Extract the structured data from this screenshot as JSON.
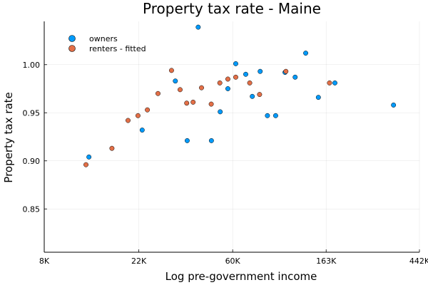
{
  "chart_data": {
    "type": "scatter",
    "title": "Property tax rate - Maine",
    "xlabel": "Log pre-government income",
    "ylabel": "Property tax rate",
    "x_scale": "log",
    "xlim": [
      8000,
      442000
    ],
    "ylim": [
      0.805,
      1.045
    ],
    "x_ticks": [
      {
        "value": 8000,
        "label": "8K"
      },
      {
        "value": 22000,
        "label": "22K"
      },
      {
        "value": 60000,
        "label": "60K"
      },
      {
        "value": 163000,
        "label": "163K"
      },
      {
        "value": 442000,
        "label": "442K"
      }
    ],
    "y_ticks": [
      {
        "value": 0.85,
        "label": "0.85"
      },
      {
        "value": 0.9,
        "label": "0.90"
      },
      {
        "value": 0.95,
        "label": "0.95"
      },
      {
        "value": 1.0,
        "label": "1.00"
      }
    ],
    "grid": true,
    "legend_position": "top-left",
    "series": [
      {
        "name": "owners",
        "color": "#009AFA",
        "points": [
          {
            "x": 12900,
            "y": 0.904
          },
          {
            "x": 22800,
            "y": 0.932
          },
          {
            "x": 32500,
            "y": 0.983
          },
          {
            "x": 36900,
            "y": 0.921
          },
          {
            "x": 41500,
            "y": 1.039
          },
          {
            "x": 47800,
            "y": 0.921
          },
          {
            "x": 52500,
            "y": 0.951
          },
          {
            "x": 57000,
            "y": 0.975
          },
          {
            "x": 62000,
            "y": 1.001
          },
          {
            "x": 69000,
            "y": 0.99
          },
          {
            "x": 74000,
            "y": 0.967
          },
          {
            "x": 80500,
            "y": 0.993
          },
          {
            "x": 87000,
            "y": 0.947
          },
          {
            "x": 95000,
            "y": 0.947
          },
          {
            "x": 105000,
            "y": 0.992
          },
          {
            "x": 117000,
            "y": 0.987
          },
          {
            "x": 131000,
            "y": 1.012
          },
          {
            "x": 150000,
            "y": 0.966
          },
          {
            "x": 179000,
            "y": 0.981
          },
          {
            "x": 335000,
            "y": 0.958
          }
        ]
      },
      {
        "name": "renters - fitted",
        "color": "#E36F47",
        "points": [
          {
            "x": 12500,
            "y": 0.896
          },
          {
            "x": 16500,
            "y": 0.913
          },
          {
            "x": 19600,
            "y": 0.942
          },
          {
            "x": 21800,
            "y": 0.947
          },
          {
            "x": 24100,
            "y": 0.953
          },
          {
            "x": 27000,
            "y": 0.97
          },
          {
            "x": 31200,
            "y": 0.994
          },
          {
            "x": 34200,
            "y": 0.974
          },
          {
            "x": 36700,
            "y": 0.96
          },
          {
            "x": 39300,
            "y": 0.961
          },
          {
            "x": 43000,
            "y": 0.976
          },
          {
            "x": 47700,
            "y": 0.959
          },
          {
            "x": 52300,
            "y": 0.981
          },
          {
            "x": 57000,
            "y": 0.985
          },
          {
            "x": 62000,
            "y": 0.987
          },
          {
            "x": 72000,
            "y": 0.981
          },
          {
            "x": 80000,
            "y": 0.969
          },
          {
            "x": 106000,
            "y": 0.993
          },
          {
            "x": 169000,
            "y": 0.981
          }
        ]
      }
    ]
  }
}
